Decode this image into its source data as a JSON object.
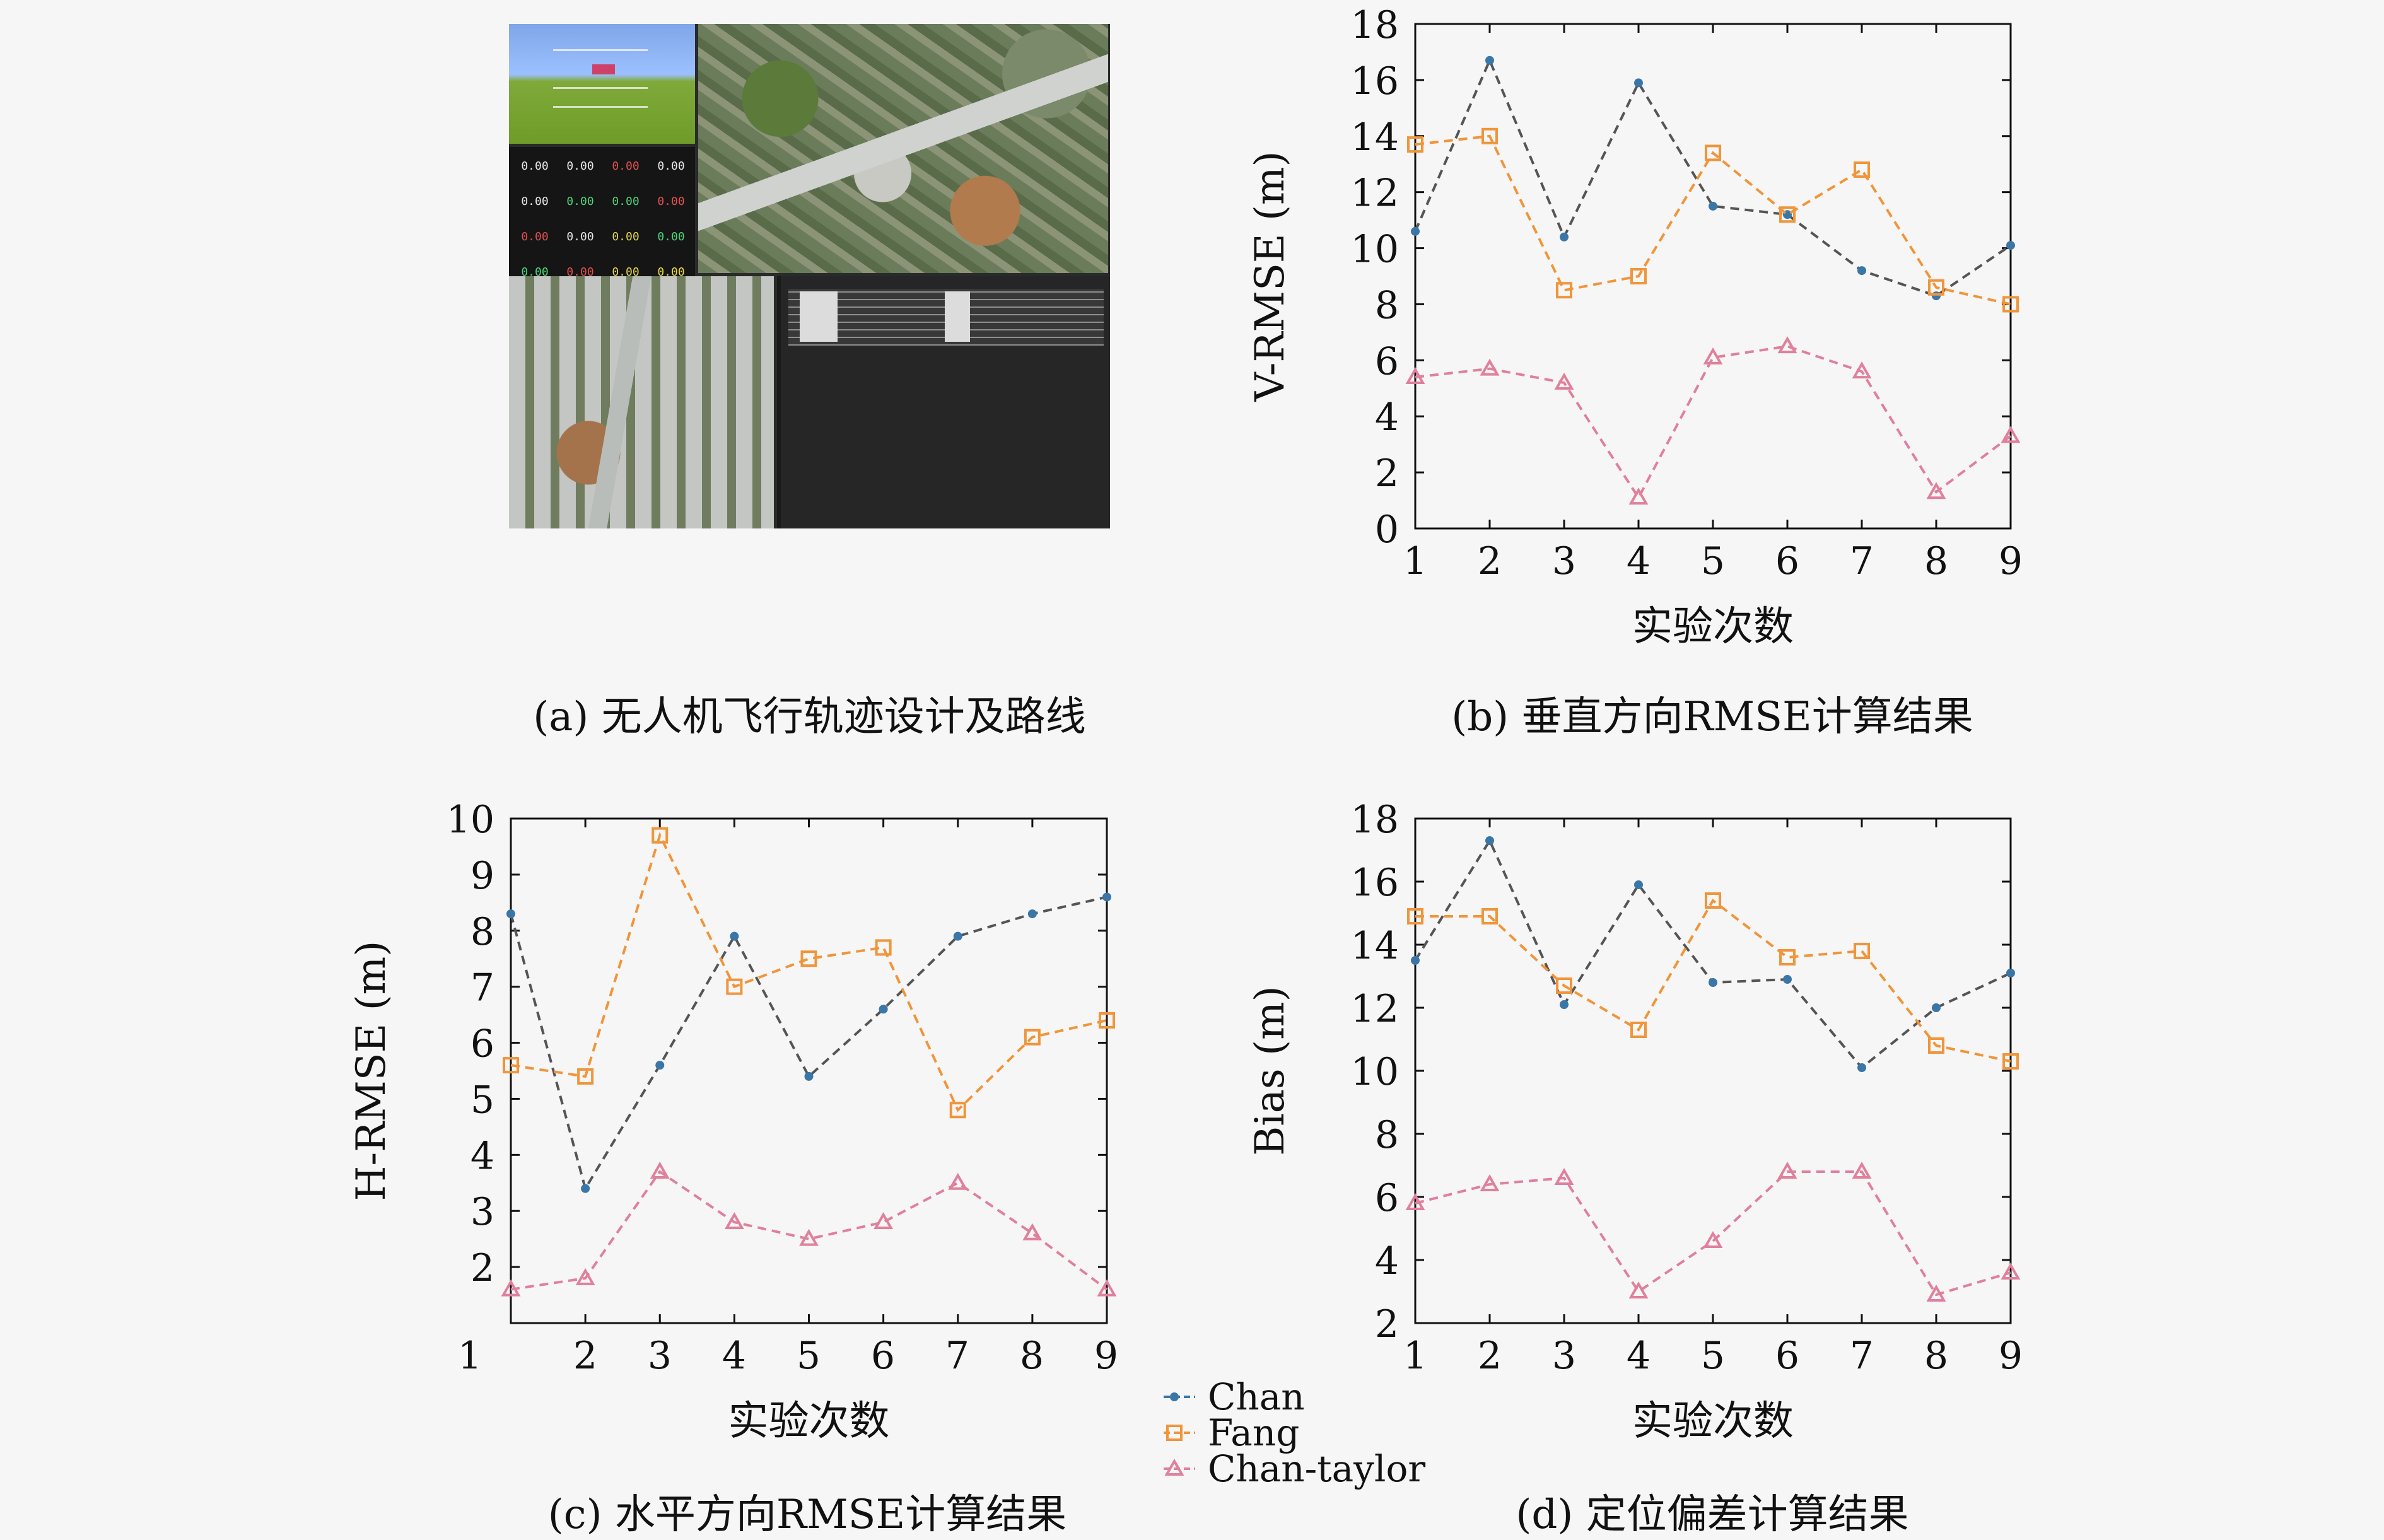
{
  "captions": {
    "a": "(a) 无人机飞行轨迹设计及路线",
    "b": "(b) 垂直方向RMSE计算结果",
    "c": "(c) 水平方向RMSE计算结果",
    "d": "(d) 定位偏差计算结果"
  },
  "panel_a": {
    "gauge_values": [
      "0.00",
      "0.00",
      "0.00",
      "0.00",
      "0.00",
      "0.00",
      "0.00",
      "0.00",
      "0.00",
      "0.00",
      "0.00",
      "0.00",
      "0.00",
      "0.00",
      "0.00",
      "0.00"
    ],
    "gauge_colors": [
      "#e6e6e6",
      "#e6e6e6",
      "#e05050",
      "#e6e6e6",
      "#e6e6e6",
      "#4ed27a",
      "#4ed27a",
      "#e05050",
      "#e05050",
      "#e6e6e6",
      "#e6d84e",
      "#4ed27a",
      "#4ed27a",
      "#e05050",
      "#e6d84e",
      "#e6d84e"
    ]
  },
  "legend": [
    {
      "name": "Chan",
      "color": "#3a77a8",
      "marker": "dot"
    },
    {
      "name": "Fang",
      "color": "#f0953a",
      "marker": "square"
    },
    {
      "name": "Chan-taylor",
      "color": "#e0809c",
      "marker": "triangle"
    }
  ],
  "chart_data": [
    {
      "id": "b",
      "type": "line",
      "x": [
        1,
        2,
        3,
        4,
        5,
        6,
        7,
        8,
        9
      ],
      "xlabel": "实验次数",
      "ylabel": "V-RMSE (m)",
      "ylim": [
        0,
        18
      ],
      "yticks": [
        0,
        2,
        4,
        6,
        8,
        10,
        12,
        14,
        16,
        18
      ],
      "xticks": [
        1,
        2,
        3,
        4,
        5,
        6,
        7,
        8,
        9
      ],
      "series": [
        {
          "name": "Chan",
          "values": [
            10.6,
            16.7,
            10.4,
            15.9,
            11.5,
            11.2,
            9.2,
            8.3,
            10.1
          ]
        },
        {
          "name": "Fang",
          "values": [
            13.7,
            14.0,
            8.5,
            9.0,
            13.4,
            11.2,
            12.8,
            8.6,
            8.0
          ]
        },
        {
          "name": "Chan-taylor",
          "values": [
            5.4,
            5.7,
            5.2,
            1.1,
            6.1,
            6.5,
            5.6,
            1.3,
            3.3
          ]
        }
      ]
    },
    {
      "id": "c",
      "type": "line",
      "x": [
        1,
        2,
        3,
        4,
        5,
        6,
        7,
        8,
        9
      ],
      "xlabel": "实验次数",
      "ylabel": "H-RMSE (m)",
      "ylim": [
        1,
        10
      ],
      "yticks": [
        2,
        3,
        4,
        5,
        6,
        7,
        8,
        9,
        10
      ],
      "xticks": [
        1,
        2,
        3,
        4,
        5,
        6,
        7,
        8,
        9
      ],
      "series": [
        {
          "name": "Chan",
          "values": [
            8.3,
            3.4,
            5.6,
            7.9,
            5.4,
            6.6,
            7.9,
            8.3,
            8.6
          ]
        },
        {
          "name": "Fang",
          "values": [
            5.6,
            5.4,
            9.7,
            7.0,
            7.5,
            7.7,
            4.8,
            6.1,
            6.4
          ]
        },
        {
          "name": "Chan-taylor",
          "values": [
            1.6,
            1.8,
            3.7,
            2.8,
            2.5,
            2.8,
            3.5,
            2.6,
            1.6
          ]
        }
      ]
    },
    {
      "id": "d",
      "type": "line",
      "x": [
        1,
        2,
        3,
        4,
        5,
        6,
        7,
        8,
        9
      ],
      "xlabel": "实验次数",
      "ylabel": "Bias (m)",
      "ylim": [
        2,
        18
      ],
      "yticks": [
        2,
        4,
        6,
        8,
        10,
        12,
        14,
        16,
        18
      ],
      "xticks": [
        1,
        2,
        3,
        4,
        5,
        6,
        7,
        8,
        9
      ],
      "series": [
        {
          "name": "Chan",
          "values": [
            13.5,
            17.3,
            12.1,
            15.9,
            12.8,
            12.9,
            10.1,
            12.0,
            13.1
          ]
        },
        {
          "name": "Fang",
          "values": [
            14.9,
            14.9,
            12.7,
            11.3,
            15.4,
            13.6,
            13.8,
            10.8,
            10.3
          ]
        },
        {
          "name": "Chan-taylor",
          "values": [
            5.8,
            6.4,
            6.6,
            3.0,
            4.6,
            6.8,
            6.8,
            2.9,
            3.6
          ]
        }
      ]
    }
  ]
}
